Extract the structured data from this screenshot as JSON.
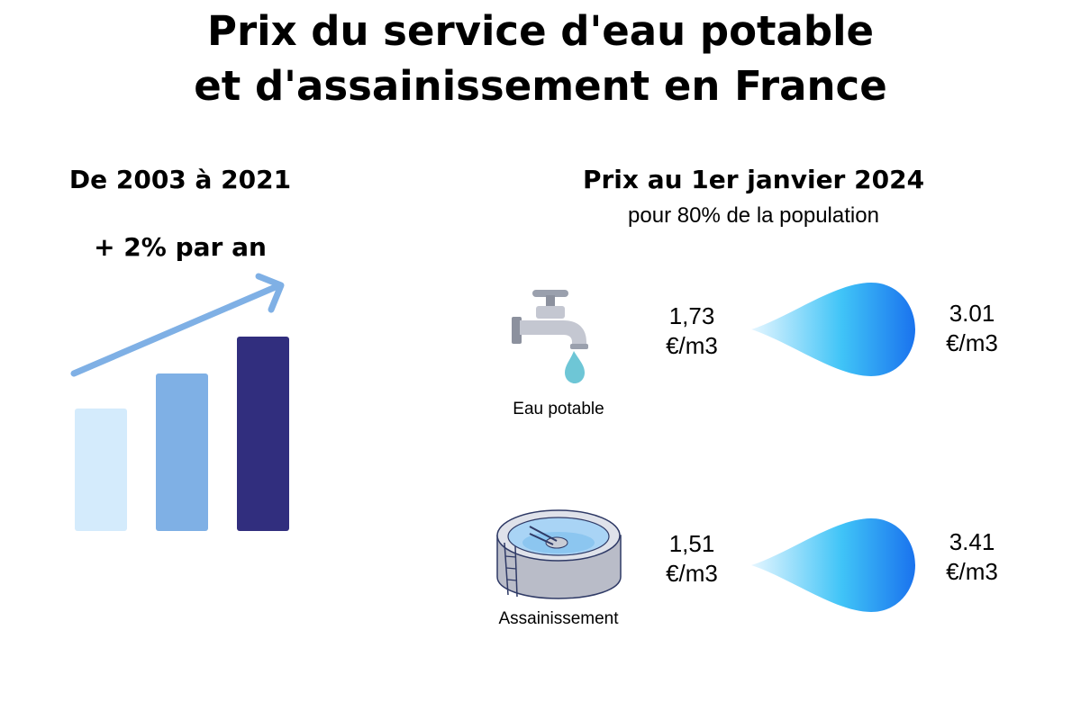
{
  "title": {
    "line1": "Prix du service d'eau potable",
    "line2": "et d'assainissement en France"
  },
  "left_panel": {
    "heading": "De 2003 à 2021",
    "growth": "+ 2% par an",
    "bar_levels": [
      0.63,
      0.81,
      1.0
    ],
    "bar_colors": [
      "#d4ebfc",
      "#7fb0e5",
      "#312e7e"
    ],
    "arrow_color": "#7fb0e5"
  },
  "right_panel": {
    "heading": "Prix au 1er janvier 2024",
    "subheading": "pour 80% de la population",
    "rows": [
      {
        "label": "Eau potable",
        "low_value": "1,73",
        "low_unit": "€/m3",
        "high_value": "3.01",
        "high_unit": "€/m3",
        "icon": "water-tap-icon"
      },
      {
        "label": "Assainissement",
        "low_value": "1,51",
        "low_unit": "€/m3",
        "high_value": "3.41",
        "high_unit": "€/m3",
        "icon": "treatment-basin-icon"
      }
    ]
  },
  "colors": {
    "drop_light": "#e6f6ff",
    "drop_mid": "#40c4f7",
    "drop_dark": "#1a73ee",
    "tap_drop": "#6ec6d6"
  }
}
